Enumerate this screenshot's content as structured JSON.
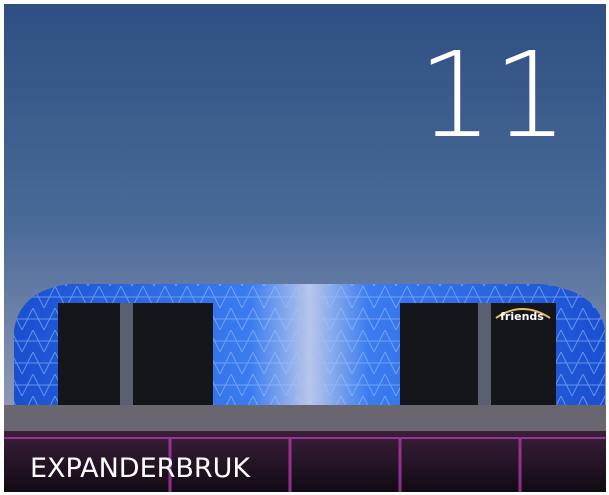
{
  "image": {
    "number": "11",
    "caption": "EXPANDERBRUK",
    "sign": "friends"
  }
}
